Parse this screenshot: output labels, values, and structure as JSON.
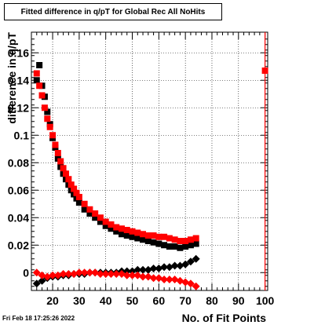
{
  "chart_data": {
    "type": "scatter",
    "title": "Fitted difference in q/pT for Global Rec All NoHits",
    "xlabel": "No. of Fit Points",
    "ylabel": "difference in q/pT",
    "xlim": [
      12,
      101
    ],
    "ylim": [
      -0.013,
      0.175
    ],
    "grid": true,
    "x_ticks": [
      20,
      30,
      40,
      50,
      60,
      70,
      80,
      90,
      100
    ],
    "x_tick_labels": [
      "20",
      "30",
      "40",
      "50",
      "60",
      "70",
      "80",
      "90",
      "100"
    ],
    "y_ticks": [
      0,
      0.02,
      0.04,
      0.06,
      0.08,
      0.1,
      0.12,
      0.14,
      0.16
    ],
    "y_tick_labels": [
      "0",
      "0.02",
      "0.04",
      "0.06",
      "0.08",
      "0.1",
      "0.12",
      "0.14",
      "0.16"
    ],
    "series": [
      {
        "color": "#000000",
        "marker": "square",
        "x": [
          14,
          15,
          16,
          17,
          18,
          19,
          20,
          21,
          22,
          23,
          24,
          25,
          26,
          27,
          28,
          29,
          30,
          32,
          34,
          36,
          38,
          40,
          42,
          44,
          46,
          48,
          50,
          52,
          54,
          56,
          58,
          60,
          62,
          64,
          66,
          68,
          70,
          72,
          74
        ],
        "y": [
          0.14,
          0.151,
          0.136,
          0.128,
          0.117,
          0.108,
          0.098,
          0.091,
          0.083,
          0.077,
          0.072,
          0.068,
          0.064,
          0.06,
          0.057,
          0.054,
          0.051,
          0.046,
          0.043,
          0.04,
          0.037,
          0.034,
          0.032,
          0.03,
          0.028,
          0.027,
          0.026,
          0.025,
          0.024,
          0.023,
          0.022,
          0.021,
          0.02,
          0.019,
          0.019,
          0.018,
          0.019,
          0.02,
          0.021
        ]
      },
      {
        "color": "#ff0000",
        "marker": "square",
        "x": [
          14,
          15,
          16,
          17,
          18,
          19,
          20,
          21,
          22,
          23,
          24,
          25,
          26,
          27,
          28,
          29,
          30,
          32,
          34,
          36,
          38,
          40,
          42,
          44,
          46,
          48,
          50,
          52,
          54,
          56,
          58,
          60,
          62,
          64,
          66,
          68,
          70,
          72,
          74,
          100
        ],
        "y": [
          0.145,
          0.136,
          0.129,
          0.12,
          0.112,
          0.106,
          0.1,
          0.093,
          0.087,
          0.081,
          0.076,
          0.072,
          0.068,
          0.064,
          0.061,
          0.058,
          0.055,
          0.05,
          0.046,
          0.043,
          0.04,
          0.037,
          0.035,
          0.033,
          0.032,
          0.031,
          0.03,
          0.029,
          0.028,
          0.027,
          0.027,
          0.026,
          0.026,
          0.025,
          0.024,
          0.023,
          0.023,
          0.024,
          0.025,
          0.147
        ]
      },
      {
        "color": "#000000",
        "marker": "diamond",
        "x": [
          14,
          16,
          18,
          20,
          22,
          24,
          26,
          28,
          30,
          32,
          34,
          36,
          38,
          40,
          42,
          44,
          46,
          48,
          50,
          52,
          54,
          56,
          58,
          60,
          62,
          64,
          66,
          68,
          70,
          72,
          74
        ],
        "y": [
          -0.008,
          -0.006,
          -0.004,
          -0.003,
          -0.003,
          -0.002,
          -0.002,
          -0.001,
          -0.001,
          -0.001,
          0.0,
          0.0,
          0.0,
          0.0,
          0.0,
          0.0,
          0.001,
          0.001,
          0.001,
          0.002,
          0.002,
          0.002,
          0.003,
          0.003,
          0.004,
          0.004,
          0.005,
          0.005,
          0.006,
          0.008,
          0.01
        ]
      },
      {
        "color": "#ff0000",
        "marker": "diamond",
        "x": [
          14,
          16,
          18,
          20,
          22,
          24,
          26,
          28,
          30,
          32,
          34,
          36,
          38,
          40,
          42,
          44,
          46,
          48,
          50,
          52,
          54,
          56,
          58,
          60,
          62,
          64,
          66,
          68,
          70,
          72,
          74
        ],
        "y": [
          0.0,
          -0.002,
          -0.003,
          -0.002,
          -0.002,
          -0.001,
          -0.001,
          -0.001,
          0.0,
          0.0,
          0.0,
          0.0,
          -0.001,
          -0.001,
          -0.001,
          -0.001,
          -0.001,
          -0.002,
          -0.002,
          -0.002,
          -0.003,
          -0.003,
          -0.004,
          -0.004,
          -0.005,
          -0.005,
          -0.005,
          -0.006,
          -0.007,
          -0.008,
          -0.01
        ]
      }
    ],
    "markers": [
      {
        "x": 100,
        "color": "#ff0000"
      }
    ]
  },
  "footer": {
    "timestamp": "Fri Feb 18 17:25:26 2022"
  }
}
